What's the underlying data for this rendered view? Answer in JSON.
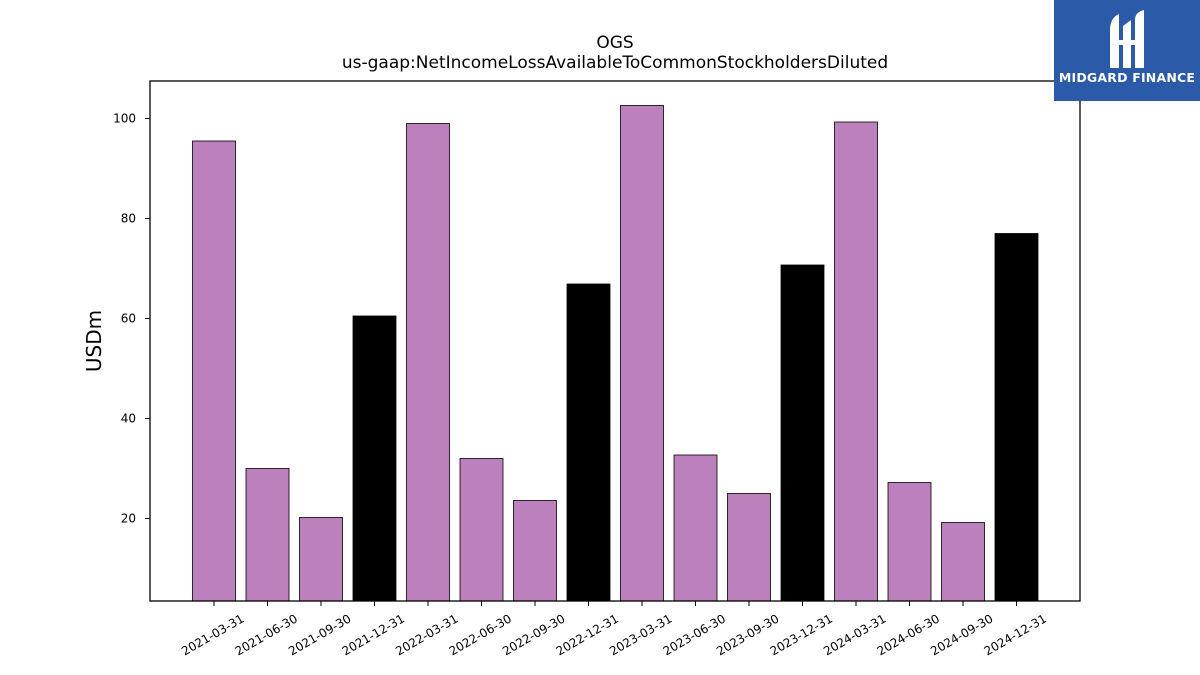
{
  "brand": {
    "name": "MIDGARD FINANCE",
    "color": "#2b5aa8"
  },
  "chart_data": {
    "type": "bar",
    "title": "OGS",
    "subtitle": "us-gaap:NetIncomeLossAvailableToCommonStockholdersDiluted",
    "xlabel": "",
    "ylabel": "USDm",
    "ylim": [
      3.5,
      107.5
    ],
    "yticks": [
      20,
      40,
      60,
      80,
      100
    ],
    "grid": false,
    "colors": {
      "quarter": "#bc80bd",
      "year_end": "#000000",
      "edge": "#000000"
    },
    "categories": [
      "2021-03-31",
      "2021-06-30",
      "2021-09-30",
      "2021-12-31",
      "2022-03-31",
      "2022-06-30",
      "2022-09-30",
      "2022-12-31",
      "2023-03-31",
      "2023-06-30",
      "2023-09-30",
      "2023-12-31",
      "2024-03-31",
      "2024-06-30",
      "2024-09-30",
      "2024-12-31"
    ],
    "values": [
      95.5,
      30.0,
      20.2,
      60.5,
      99.0,
      32.0,
      23.6,
      66.9,
      102.6,
      32.7,
      25.0,
      70.7,
      99.3,
      27.2,
      19.2,
      77.0
    ],
    "year_end": [
      false,
      false,
      false,
      true,
      false,
      false,
      false,
      true,
      false,
      false,
      false,
      true,
      false,
      false,
      false,
      true
    ]
  }
}
